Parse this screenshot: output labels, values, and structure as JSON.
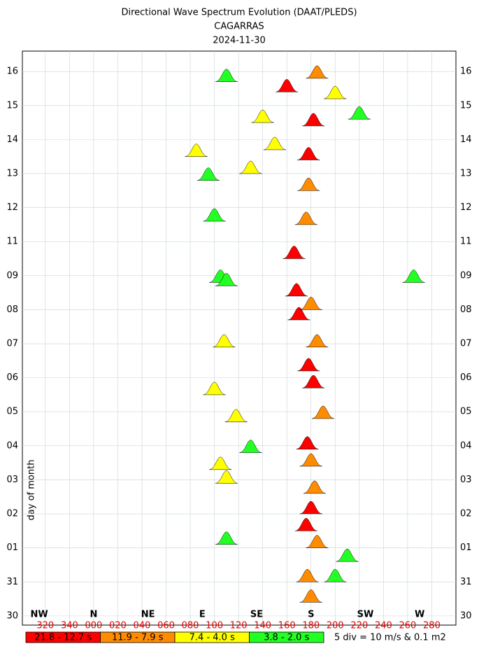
{
  "chart_data": {
    "type": "spectrum",
    "title": "Directional Wave Spectrum Evolution (DAAT/PLEDS)",
    "subtitle": "CAGARRAS",
    "date": "2024-11-30",
    "y_label": "day of month",
    "note": "5 div = 10 m/s & 0.1 m2",
    "grid": true,
    "xlim": [
      -59,
      300
    ],
    "ylim": [
      -0.27,
      16.6
    ],
    "xticks": [
      {
        "value": -40,
        "label": "320"
      },
      {
        "value": -20,
        "label": "340"
      },
      {
        "value": 0,
        "label": "000"
      },
      {
        "value": 20,
        "label": "020"
      },
      {
        "value": 40,
        "label": "040"
      },
      {
        "value": 60,
        "label": "060"
      },
      {
        "value": 80,
        "label": "080"
      },
      100,
      120,
      140,
      160,
      180,
      200,
      220,
      240,
      260,
      280
    ],
    "compass": [
      {
        "value": -45,
        "label": "NW"
      },
      {
        "value": 0,
        "label": "N"
      },
      {
        "value": 45,
        "label": "NE"
      },
      {
        "value": 90,
        "label": "E"
      },
      {
        "value": 135,
        "label": "SE"
      },
      {
        "value": 180,
        "label": "S"
      },
      {
        "value": 225,
        "label": "SW"
      },
      {
        "value": 270,
        "label": "W"
      }
    ],
    "yticks": [
      {
        "value": 0,
        "label": "30"
      },
      {
        "value": 1,
        "label": "31"
      },
      {
        "value": 2,
        "label": "01"
      },
      {
        "value": 3,
        "label": "02"
      },
      {
        "value": 4,
        "label": "03"
      },
      {
        "value": 5,
        "label": "04"
      },
      {
        "value": 6,
        "label": "05"
      },
      {
        "value": 7,
        "label": "06"
      },
      {
        "value": 8,
        "label": "07"
      },
      {
        "value": 9,
        "label": "08"
      },
      {
        "value": 10,
        "label": "09"
      },
      11,
      12,
      13,
      14,
      15,
      16
    ],
    "series": [
      {
        "name": "21.8 - 12.7 s",
        "color": "#ff0000",
        "x": [
          176,
          180,
          177,
          182,
          178,
          170,
          168,
          166,
          178,
          182,
          160
        ],
        "values": [
          2.5,
          3.0,
          4.9,
          6.7,
          7.2,
          8.7,
          9.4,
          10.5,
          13.4,
          14.4,
          15.4
        ]
      },
      {
        "name": "11.9 - 7.9 s",
        "color": "#ff8c00",
        "x": [
          180,
          177,
          185,
          183,
          180,
          190,
          185,
          180,
          176,
          178,
          185
        ],
        "values": [
          0.4,
          1.0,
          2.0,
          3.6,
          4.4,
          5.8,
          7.9,
          9.0,
          11.5,
          12.5,
          15.8
        ]
      },
      {
        "name": "7.4 - 4.0 s",
        "color": "#ffff00",
        "x": [
          110,
          105,
          100,
          118,
          108,
          85,
          130,
          140,
          200,
          150
        ],
        "values": [
          3.9,
          4.3,
          6.5,
          5.7,
          7.9,
          13.5,
          13.0,
          14.5,
          15.2,
          13.7
        ]
      },
      {
        "name": "3.8 - 2.0 s",
        "color": "#22ff22",
        "x": [
          200,
          210,
          110,
          130,
          105,
          110,
          265,
          100,
          110,
          220,
          95
        ],
        "values": [
          1.0,
          1.6,
          2.1,
          4.8,
          9.8,
          9.7,
          9.8,
          11.6,
          15.7,
          14.6,
          12.8
        ]
      }
    ]
  }
}
